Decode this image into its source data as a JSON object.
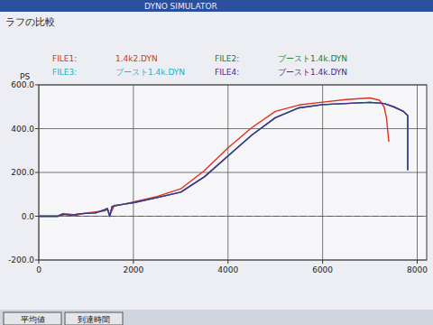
{
  "chart_data": {
    "type": "line",
    "title": "ラフの比較",
    "annotations": [
      "DYNO SIMULATOR",
      "平均値",
      "到達時間"
    ],
    "y_label": "PS",
    "xlim": [
      0,
      8200
    ],
    "ylim": [
      -200,
      600
    ],
    "xticks": [
      0,
      2000,
      4000,
      6000,
      8000
    ],
    "yticks": [
      {
        "value": -200,
        "label": "-200.0"
      },
      {
        "value": 0,
        "label": "0.0"
      },
      {
        "value": 200,
        "label": "200.0"
      },
      {
        "value": 400,
        "label": "400.0"
      },
      {
        "value": 600,
        "label": "600.0"
      }
    ],
    "grid": true,
    "legend": "top",
    "series": [
      {
        "name": "FILE1: 1.4k2.DYN",
        "color": "#e03020",
        "x": [
          0,
          400,
          600,
          800,
          1000,
          1200,
          1400,
          1450,
          1500,
          1600,
          1800,
          2000,
          2500,
          3000,
          3500,
          4000,
          4500,
          5000,
          5500,
          6000,
          6500,
          7000,
          7200,
          7300,
          7350,
          7400
        ],
        "values": [
          0,
          0,
          10,
          5,
          15,
          20,
          25,
          30,
          5,
          50,
          55,
          65,
          90,
          125,
          208,
          312,
          404,
          479,
          508,
          521,
          533,
          540,
          530,
          500,
          450,
          340
        ]
      },
      {
        "name": "FILE2: ブースト1.4k.DYN",
        "color": "#208030",
        "x": [
          0,
          400,
          500,
          700,
          900,
          1200,
          1400,
          1450,
          1500,
          1550,
          1800,
          2000,
          2500,
          3000,
          3500,
          4000,
          4500,
          5000,
          5500,
          6000,
          6500,
          7000,
          7300,
          7500,
          7700,
          7750,
          7800,
          7800
        ],
        "values": [
          0,
          0,
          10,
          5,
          12,
          15,
          30,
          35,
          0,
          45,
          55,
          62,
          85,
          110,
          180,
          275,
          370,
          450,
          495,
          510,
          515,
          520,
          515,
          500,
          480,
          470,
          460,
          210
        ]
      },
      {
        "name": "FILE3: ブースト1.4k.DYN",
        "color": "#20b0c8",
        "x": [
          0,
          400,
          500,
          700,
          900,
          1200,
          1400,
          1450,
          1500,
          1550,
          1800,
          2000,
          2500,
          3000,
          3500,
          4000,
          4500,
          5000,
          5500,
          6000,
          6500,
          7000,
          7300,
          7500,
          7700,
          7750,
          7800,
          7800
        ],
        "values": [
          0,
          0,
          10,
          5,
          12,
          15,
          30,
          35,
          0,
          45,
          55,
          62,
          85,
          110,
          180,
          275,
          370,
          450,
          495,
          510,
          515,
          520,
          515,
          500,
          480,
          470,
          460,
          210
        ]
      },
      {
        "name": "FILE4: ブースト1.4k.DYN",
        "color": "#502888",
        "x": [
          0,
          400,
          500,
          700,
          900,
          1200,
          1400,
          1450,
          1500,
          1550,
          1800,
          2000,
          2500,
          3000,
          3500,
          4000,
          4500,
          5000,
          5500,
          6000,
          6500,
          7000,
          7300,
          7500,
          7700,
          7750,
          7800,
          7800
        ],
        "values": [
          0,
          0,
          10,
          5,
          12,
          15,
          30,
          35,
          0,
          45,
          55,
          62,
          85,
          110,
          180,
          275,
          370,
          450,
          495,
          510,
          515,
          520,
          515,
          500,
          480,
          470,
          460,
          210
        ]
      }
    ]
  }
}
